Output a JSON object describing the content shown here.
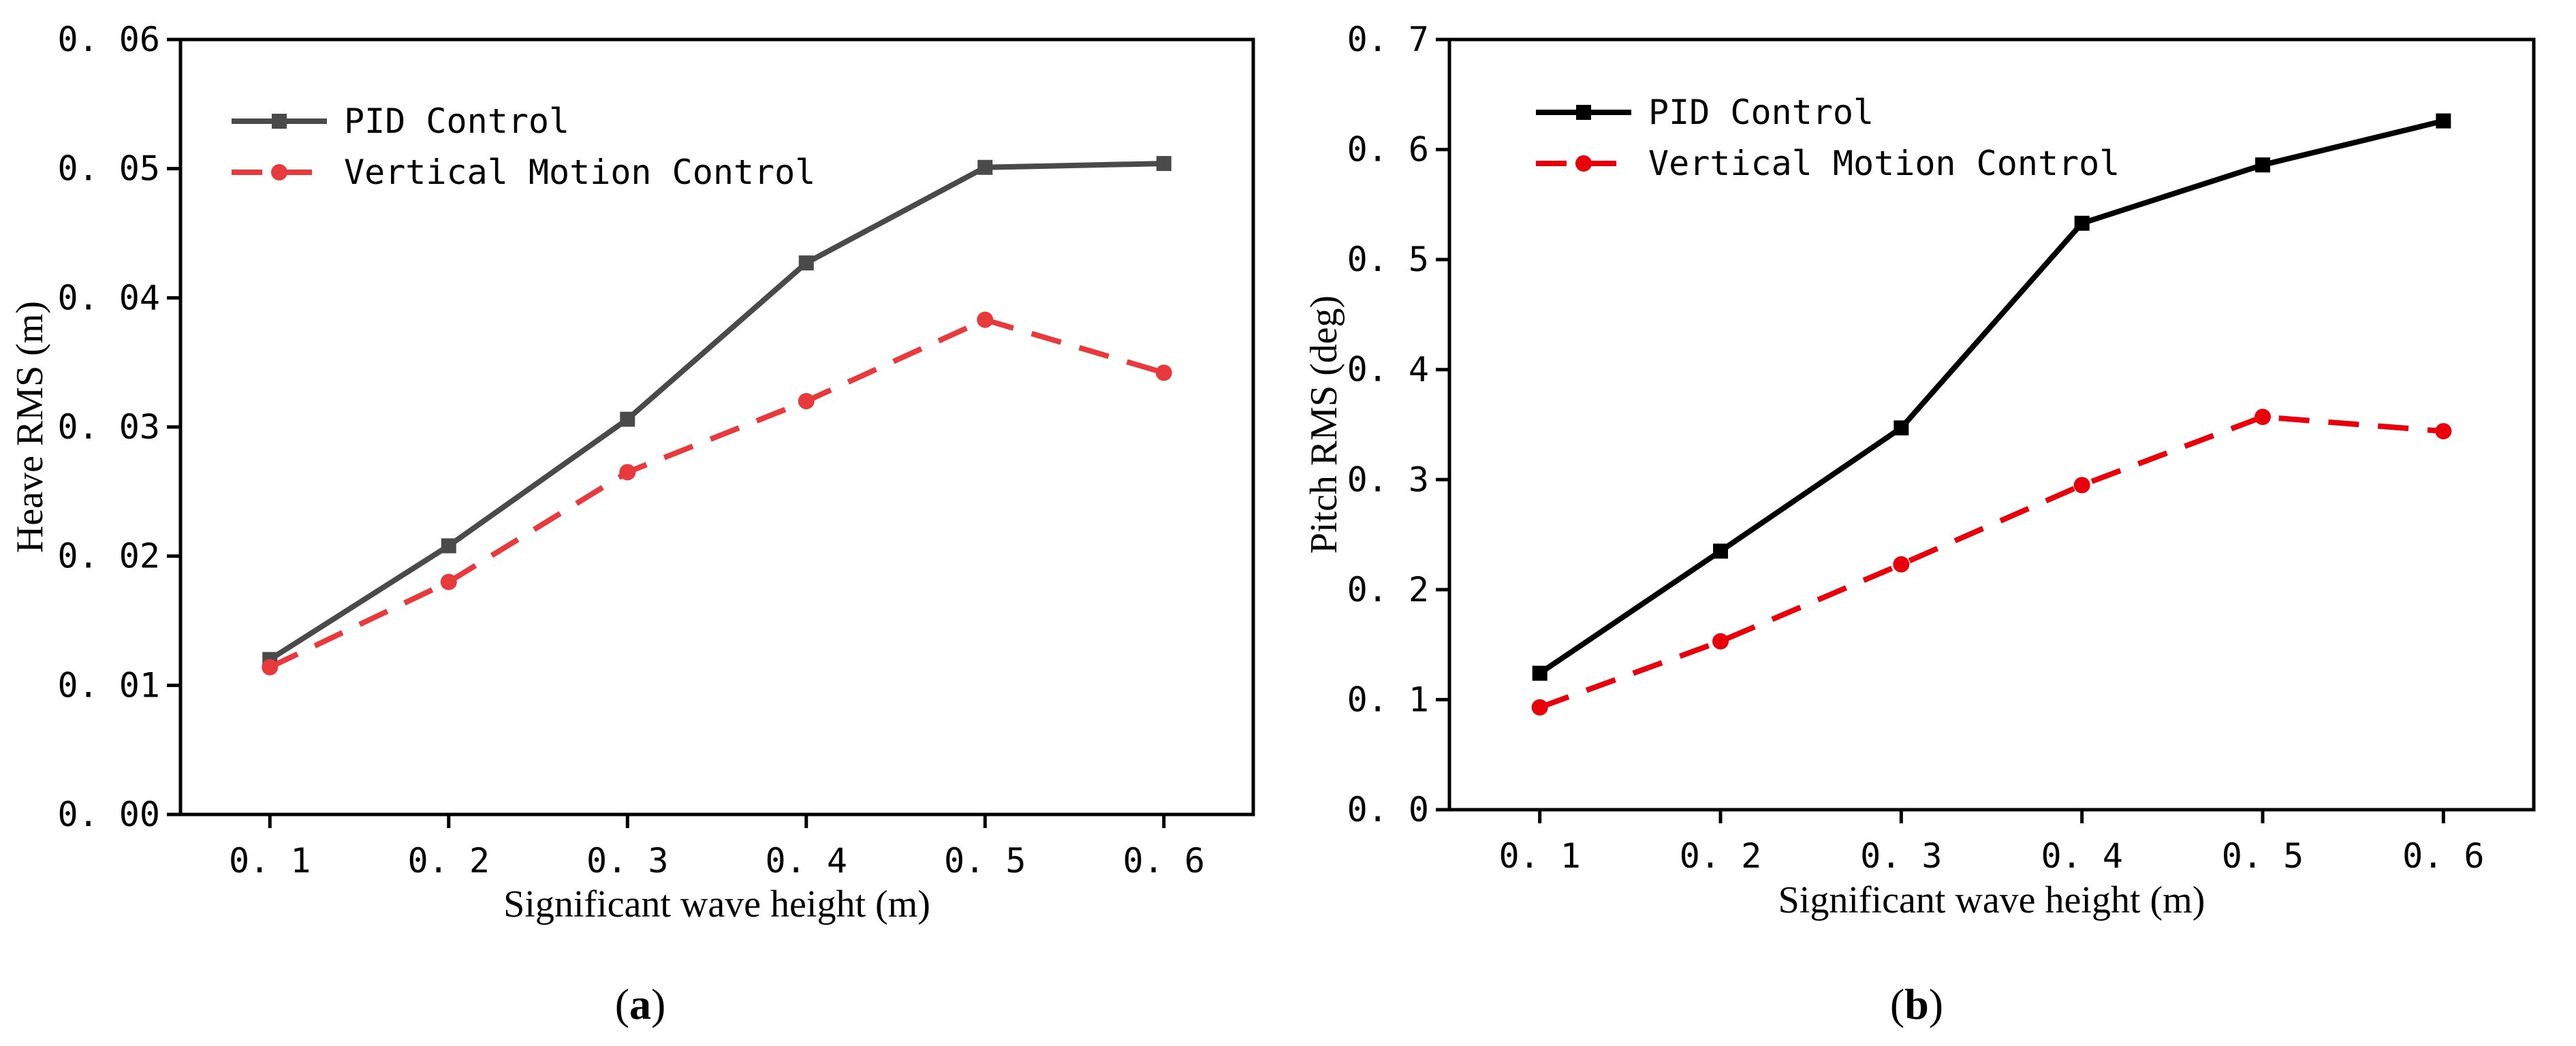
{
  "chart_data": [
    {
      "type": "line",
      "panel": "a",
      "caption": {
        "open": "(",
        "letter": "a",
        "close": ")"
      },
      "xlabel": "Significant wave height (m)",
      "ylabel": "Heave RMS (m)",
      "x": [
        0.1,
        0.2,
        0.3,
        0.4,
        0.5,
        0.6
      ],
      "x_tick_labels": [
        "0. 1",
        "0. 2",
        "0. 3",
        "0. 4",
        "0. 5",
        "0. 6"
      ],
      "xlim": [
        0.05,
        0.65
      ],
      "ylim": [
        0,
        0.06
      ],
      "y_ticks": [
        0,
        0.01,
        0.02,
        0.03,
        0.04,
        0.05,
        0.06
      ],
      "y_tick_labels": [
        "0. 00",
        "0. 01",
        "0. 02",
        "0. 03",
        "0. 04",
        "0. 05",
        "0. 06"
      ],
      "legend_position": "top-left",
      "series": [
        {
          "name": "PID Control",
          "color": "#4a4a4a",
          "marker": "square",
          "dash": "solid",
          "values": [
            0.012,
            0.0208,
            0.0306,
            0.0427,
            0.0501,
            0.0504
          ]
        },
        {
          "name": "Vertical Motion Control",
          "color": "#e8393c",
          "marker": "circle",
          "dash": "dashed",
          "values": [
            0.0114,
            0.018,
            0.0265,
            0.032,
            0.0383,
            0.0342
          ]
        }
      ]
    },
    {
      "type": "line",
      "panel": "b",
      "caption": {
        "open": "(",
        "letter": "b",
        "close": ")"
      },
      "xlabel": "Significant wave height (m)",
      "ylabel": "Pitch RMS (deg)",
      "x": [
        0.1,
        0.2,
        0.3,
        0.4,
        0.5,
        0.6
      ],
      "x_tick_labels": [
        "0. 1",
        "0. 2",
        "0. 3",
        "0. 4",
        "0. 5",
        "0. 6"
      ],
      "xlim": [
        0.05,
        0.65
      ],
      "ylim": [
        0,
        0.7
      ],
      "y_ticks": [
        0,
        0.1,
        0.2,
        0.3,
        0.4,
        0.5,
        0.6,
        0.7
      ],
      "y_tick_labels": [
        "0. 0",
        "0. 1",
        "0. 2",
        "0. 3",
        "0. 4",
        "0. 5",
        "0. 6",
        "0. 7"
      ],
      "legend_position": "top-left",
      "series": [
        {
          "name": "PID Control",
          "color": "#000000",
          "marker": "square",
          "dash": "solid",
          "values": [
            0.124,
            0.235,
            0.347,
            0.533,
            0.586,
            0.626
          ]
        },
        {
          "name": "Vertical Motion Control",
          "color": "#e8000b",
          "marker": "circle",
          "dash": "dashed",
          "values": [
            0.093,
            0.153,
            0.223,
            0.295,
            0.357,
            0.344
          ]
        }
      ]
    }
  ]
}
